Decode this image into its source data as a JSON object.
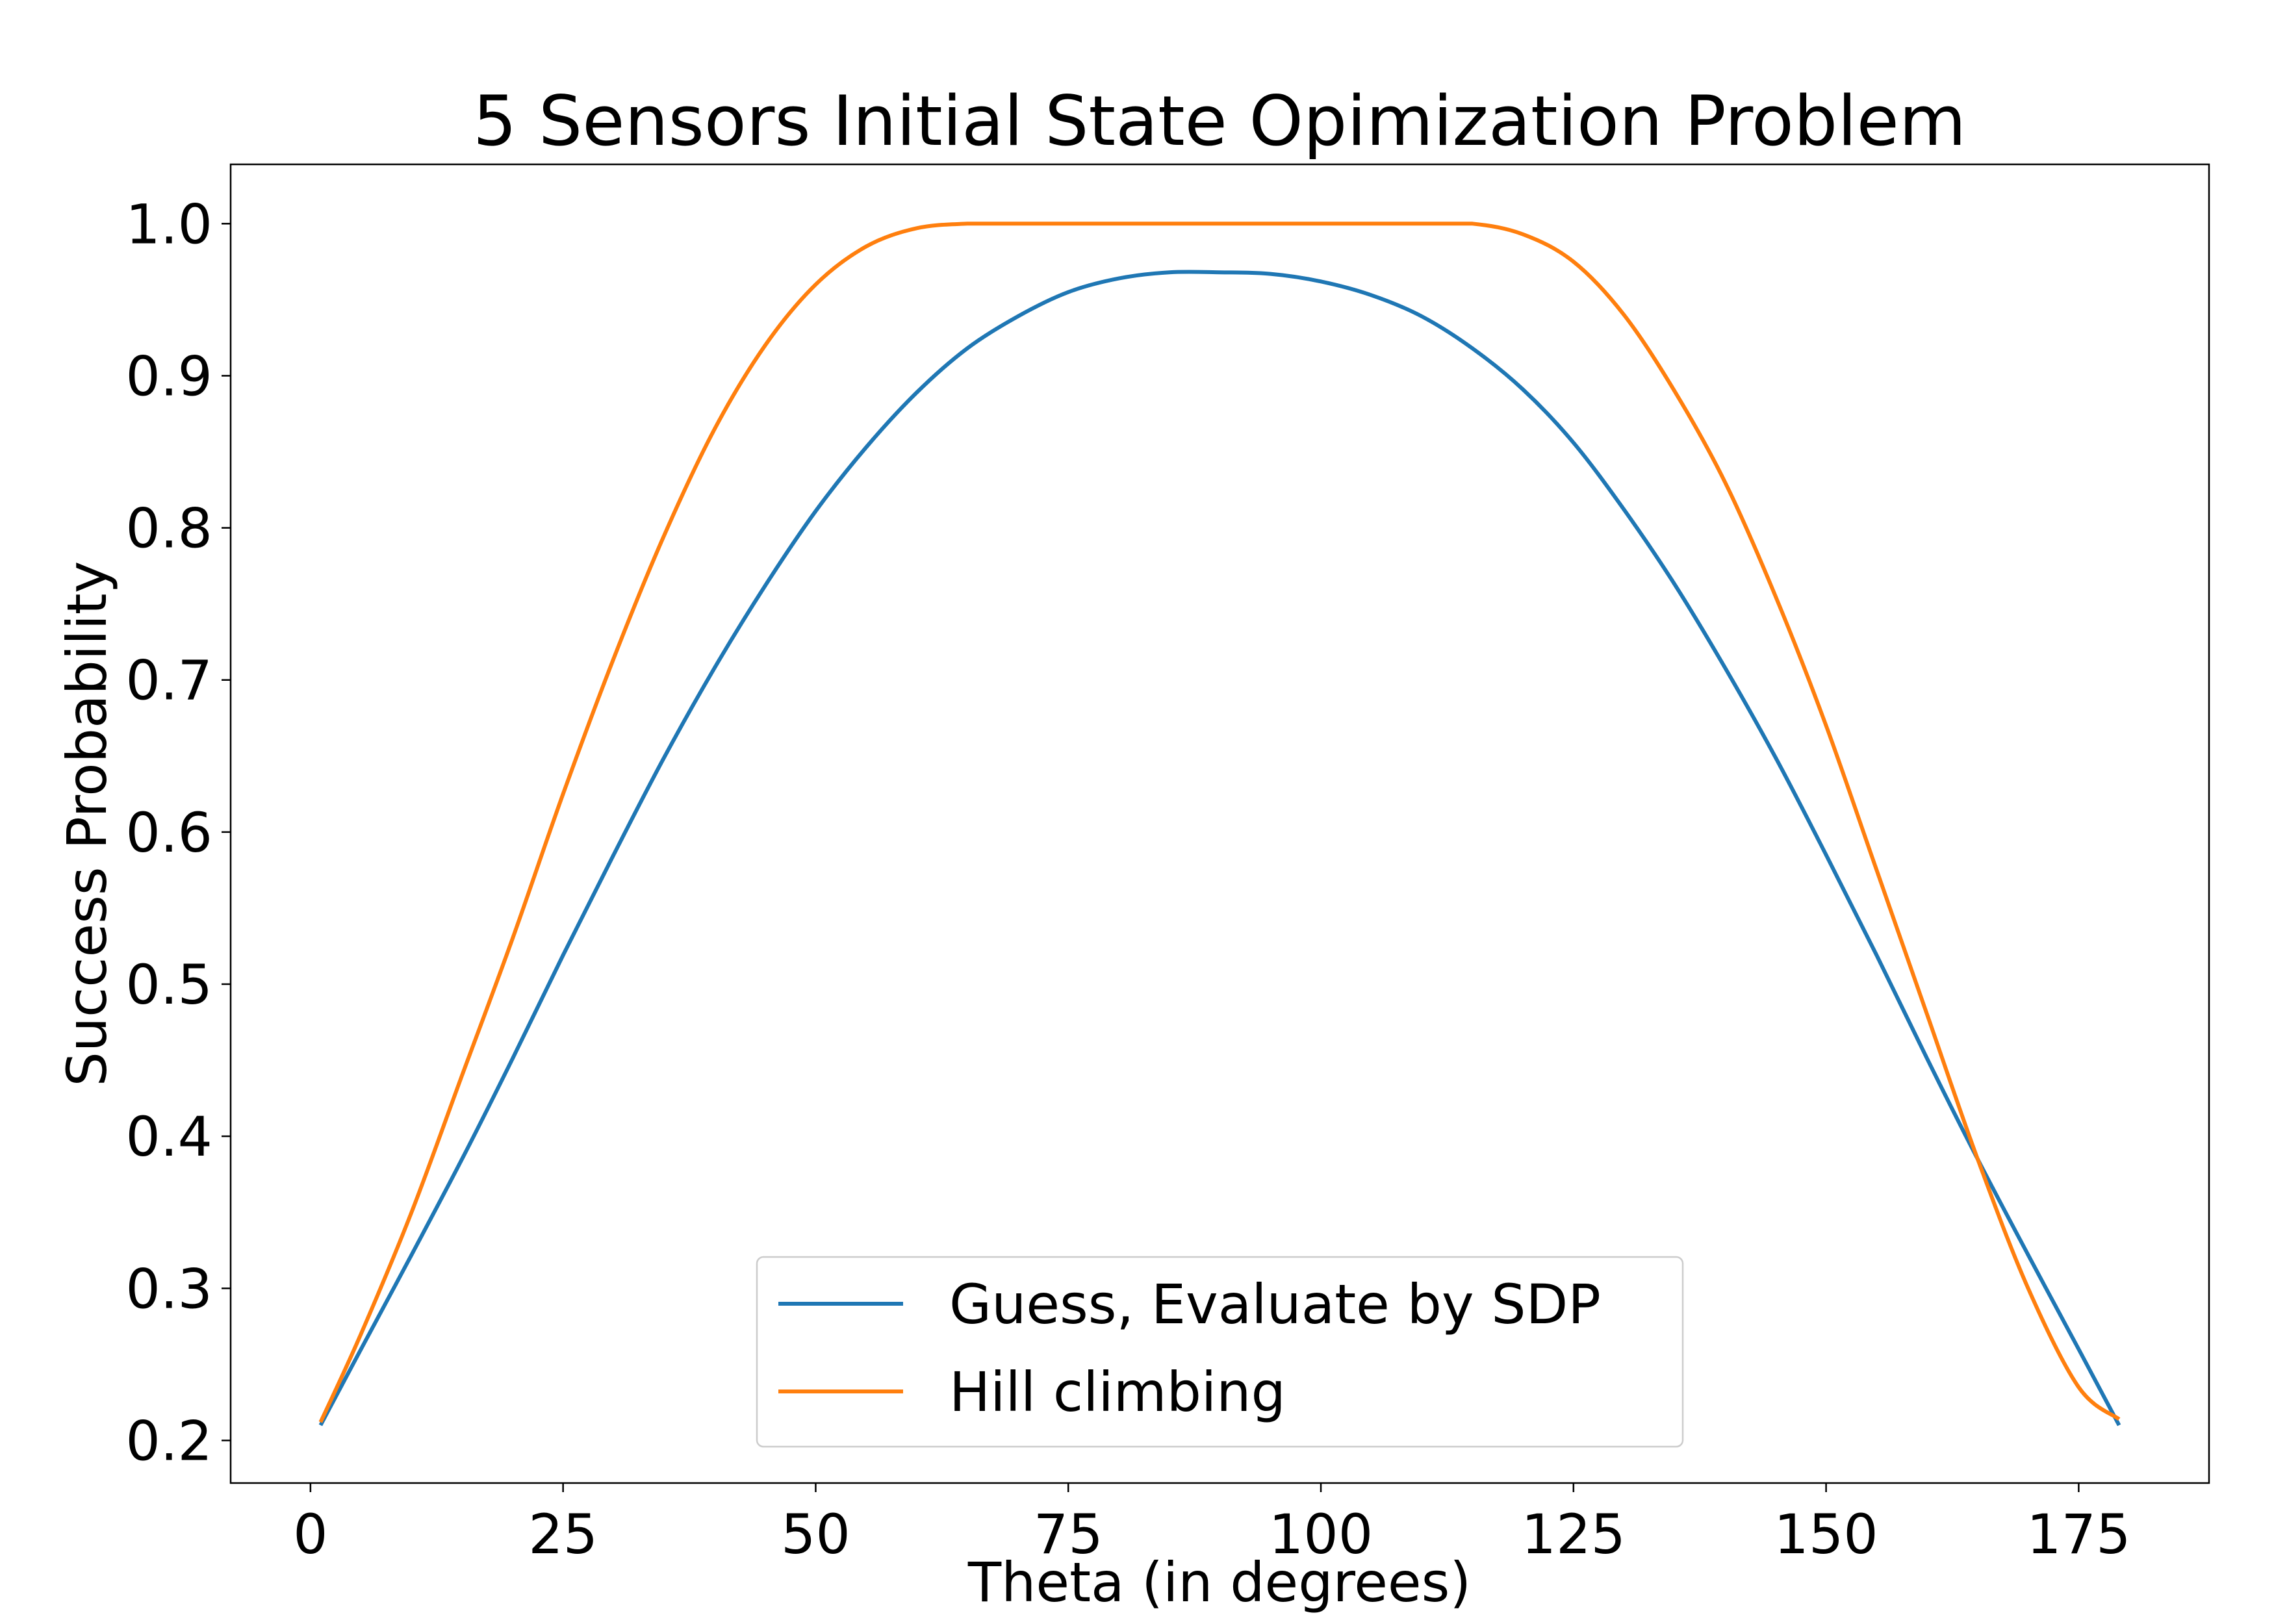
{
  "chart_data": {
    "type": "line",
    "title": "5 Sensors Initial State Opimization Problem",
    "xlabel": "Theta (in degrees)",
    "ylabel": "Success Probability",
    "xlim": [
      -7.9,
      187.9
    ],
    "ylim": [
      0.172,
      1.039
    ],
    "xticks": [
      0,
      25,
      50,
      75,
      100,
      125,
      150,
      175
    ],
    "yticks": [
      0.2,
      0.3,
      0.4,
      0.5,
      0.6,
      0.7,
      0.8,
      0.9,
      1.0
    ],
    "xtick_labels": [
      "0",
      "25",
      "50",
      "75",
      "100",
      "125",
      "150",
      "175"
    ],
    "ytick_labels": [
      "0.2",
      "0.3",
      "0.4",
      "0.5",
      "0.6",
      "0.7",
      "0.8",
      "0.9",
      "1.0"
    ],
    "grid": false,
    "legend_position": "lower center",
    "series": [
      {
        "name": "Guess, Evaluate by SDP",
        "color": "#1f77b4",
        "x": [
          1,
          5,
          10,
          15,
          20,
          25,
          30,
          35,
          40,
          45,
          50,
          55,
          60,
          65,
          70,
          75,
          80,
          85,
          90,
          95,
          100,
          105,
          110,
          115,
          120,
          125,
          130,
          135,
          140,
          145,
          150,
          155,
          160,
          165,
          170,
          175,
          179
        ],
        "y": [
          0.21,
          0.26,
          0.322,
          0.385,
          0.451,
          0.519,
          0.585,
          0.649,
          0.708,
          0.762,
          0.811,
          0.853,
          0.889,
          0.918,
          0.939,
          0.955,
          0.964,
          0.968,
          0.968,
          0.967,
          0.962,
          0.953,
          0.939,
          0.918,
          0.891,
          0.856,
          0.812,
          0.763,
          0.708,
          0.649,
          0.585,
          0.519,
          0.451,
          0.385,
          0.322,
          0.26,
          0.21
        ]
      },
      {
        "name": "Hill climbing",
        "color": "#ff7f0e",
        "x": [
          1,
          5,
          10,
          15,
          20,
          25,
          30,
          35,
          40,
          45,
          50,
          55,
          60,
          65,
          70,
          75,
          80,
          85,
          90,
          95,
          100,
          105,
          110,
          115,
          120,
          125,
          130,
          135,
          140,
          145,
          150,
          155,
          160,
          165,
          170,
          175,
          179
        ],
        "y": [
          0.212,
          0.27,
          0.35,
          0.44,
          0.53,
          0.625,
          0.714,
          0.795,
          0.865,
          0.92,
          0.96,
          0.985,
          0.997,
          1.0,
          1.0,
          1.0,
          1.0,
          1.0,
          1.0,
          1.0,
          1.0,
          1.0,
          1.0,
          1.0,
          0.993,
          0.975,
          0.94,
          0.89,
          0.83,
          0.755,
          0.67,
          0.575,
          0.48,
          0.385,
          0.3,
          0.235,
          0.214
        ]
      }
    ]
  }
}
